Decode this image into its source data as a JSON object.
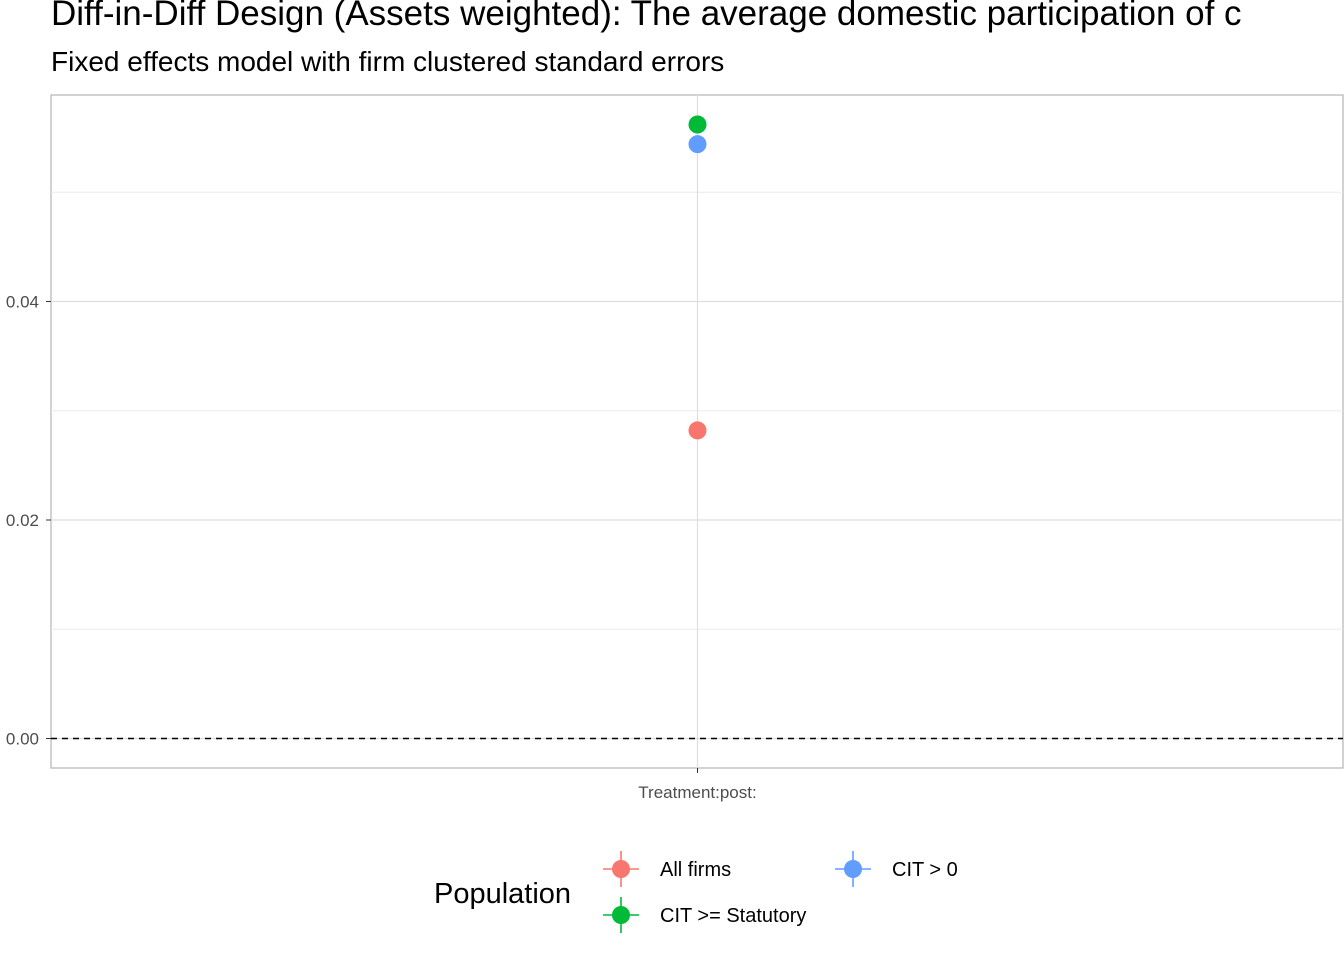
{
  "chart_data": {
    "type": "scatter",
    "title": "Diff-in-Diff Design (Assets weighted): The average domestic participation of c",
    "subtitle": "Fixed effects model with firm clustered standard errors",
    "xlabel": "",
    "ylabel": "",
    "categories": [
      "Treatment:post:"
    ],
    "y_ticks": [
      0.0,
      0.02,
      0.04
    ],
    "y_tick_labels": [
      "0.00",
      "0.02",
      "0.04"
    ],
    "ylim": [
      -0.0027,
      0.0589
    ],
    "reference_line": {
      "y": 0,
      "style": "dashed"
    },
    "grid": true,
    "legend": {
      "title": "Population",
      "position": "bottom"
    },
    "series": [
      {
        "name": "All firms",
        "color": "#F8766D",
        "values": [
          0.0282
        ]
      },
      {
        "name": "CIT >= Statutory",
        "color": "#00BA38",
        "values": [
          0.0562
        ]
      },
      {
        "name": "CIT > 0",
        "color": "#619CFF",
        "values": [
          0.0544
        ]
      }
    ],
    "legend_layout": [
      [
        "All firms",
        "CIT > 0"
      ],
      [
        "CIT >= Statutory"
      ]
    ]
  }
}
